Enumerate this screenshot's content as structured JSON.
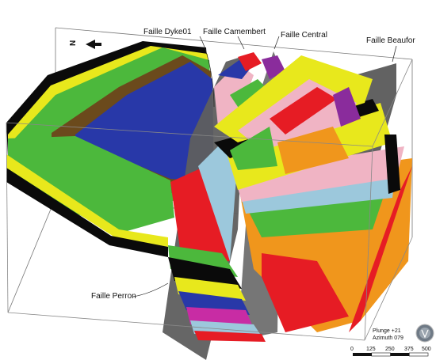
{
  "labels": {
    "fault_dyke": "Faille Dyke01",
    "fault_camembert": "Faille Camembert",
    "fault_central": "Faille Central",
    "fault_beaufor": "Faille Beaufor",
    "fault_perron": "Faille Perron"
  },
  "view": {
    "plunge": "Plunge +21",
    "azimuth": "Azimuth 079"
  },
  "north": {
    "letter": "N",
    "icon": "north-arrow-icon"
  },
  "scale": {
    "ticks": [
      "0",
      "125",
      "250",
      "375",
      "500"
    ]
  },
  "colors": {
    "black": "#0a0a0a",
    "yellow": "#e8e81c",
    "green": "#4cb83c",
    "brown": "#6b4a1c",
    "blue": "#2838a8",
    "grey": "#5e5e5e",
    "pink": "#f0b4c4",
    "red": "#e61c24",
    "orange": "#f0961c",
    "lightblue": "#9cc8dc",
    "purple": "#8a2c9c",
    "magenta": "#c82ca4"
  }
}
